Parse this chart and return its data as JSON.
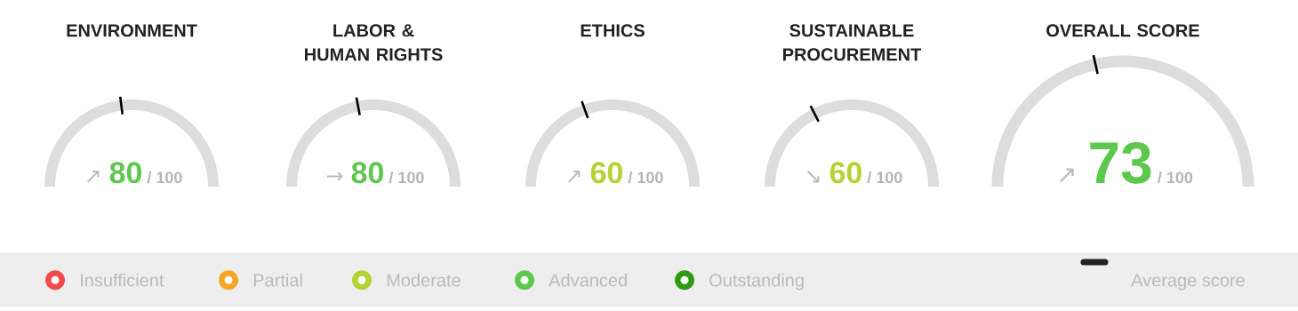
{
  "chart_data": [
    {
      "type": "donut",
      "title": "ENVIRONMENT",
      "categories": [
        null,
        null
      ],
      "values": [
        46,
        54
      ],
      "colors": [
        "#dddddd",
        "#dddddd"
      ],
      "color": "#5ec84e",
      "annotations": [
        "↗",
        "80",
        "/ 100"
      ]
    },
    {
      "type": "donut",
      "title": "LABOR & HUMAN RIGHTS",
      "categories": [
        null,
        null
      ],
      "values": [
        44,
        56
      ],
      "colors": [
        "#dddddd",
        "#dddddd"
      ],
      "color": "#5ec84e",
      "annotations": [
        "→",
        "80",
        "/ 100"
      ]
    },
    {
      "type": "donut",
      "title": "ETHICS",
      "categories": [
        null,
        null
      ],
      "values": [
        39,
        61
      ],
      "colors": [
        "#dddddd",
        "#dddddd"
      ],
      "color": "#b5d334",
      "annotations": [
        "↗",
        "60",
        "/ 100"
      ]
    },
    {
      "type": "donut",
      "title": "SUSTAINABLE PROCUREMENT",
      "categories": [
        null,
        null
      ],
      "values": [
        35,
        65
      ],
      "colors": [
        "#dddddd",
        "#dddddd"
      ],
      "color": "#b5d334",
      "annotations": [
        "↘",
        "60",
        "/ 100"
      ]
    },
    {
      "type": "donut",
      "title": "OVERALL SCORE",
      "categories": [
        null,
        null
      ],
      "values": [
        43,
        57
      ],
      "colors": [
        "#dddddd",
        "#dddddd"
      ],
      "color": "#5ec84e",
      "annotations": [
        "↗",
        "73",
        "/ 100"
      ]
    },
    {
      "type": "other",
      "categories": [
        "Insufficient",
        "Partial",
        "Moderate",
        "Advanced",
        "Outstanding"
      ],
      "colors": [
        "#f04a4a",
        "#f5a623",
        "#b5d334",
        "#5ec84e",
        "#2e9a12"
      ],
      "annotations": [
        "Average score"
      ]
    }
  ]
}
